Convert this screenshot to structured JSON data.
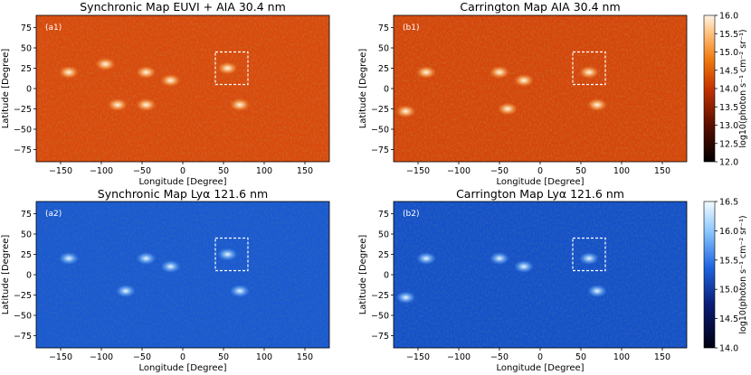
{
  "figure": {
    "panels": [
      {
        "id": "a1",
        "label": "(a1)",
        "title": "Synchronic Map EUVI + AIA 30.4 nm",
        "cmap": "orange",
        "xlabel": "Longitude [Degree]",
        "ylabel": "Latitude [Degree]"
      },
      {
        "id": "b1",
        "label": "(b1)",
        "title": "Carrington Map AIA 30.4 nm",
        "cmap": "orange",
        "xlabel": "Longitude [Degree]",
        "ylabel": "Latitude [Degree]"
      },
      {
        "id": "a2",
        "label": "(a2)",
        "title": "Synchronic Map Lyα 121.6 nm",
        "cmap": "blue",
        "xlabel": "Longitude [Degree]",
        "ylabel": "Latitude [Degree]"
      },
      {
        "id": "b2",
        "label": "(b2)",
        "title": "Carrington Map Lyα 121.6 nm",
        "cmap": "blue",
        "xlabel": "Longitude [Degree]",
        "ylabel": "Latitude [Degree]"
      }
    ],
    "colorbars": [
      {
        "id": "cb-top",
        "label": "log10(photon s⁻¹ cm⁻² sr⁻¹)",
        "ticks": [
          "16.0",
          "15.5",
          "15.0",
          "14.5",
          "14.0",
          "13.5",
          "13.0",
          "12.5",
          "12.0"
        ],
        "range": [
          12.0,
          16.0
        ]
      },
      {
        "id": "cb-bottom",
        "label": "log10(photon s⁻¹ cm⁻² sr⁻¹)",
        "ticks": [
          "16.5",
          "16.0",
          "15.5",
          "15.0",
          "14.5",
          "14.0"
        ],
        "range": [
          14.0,
          16.5
        ]
      }
    ]
  },
  "chart_data": [
    {
      "type": "heatmap",
      "title": "Synchronic Map EUVI + AIA 30.4 nm",
      "xlabel": "Longitude [Degree]",
      "ylabel": "Latitude [Degree]",
      "xlim": [
        -180,
        180
      ],
      "ylim": [
        -90,
        90
      ],
      "xticks": [
        -150,
        -100,
        -50,
        0,
        50,
        100,
        150
      ],
      "yticks": [
        -75,
        -50,
        -25,
        0,
        25,
        50,
        75
      ],
      "highlight_box": {
        "lon": [
          40,
          80
        ],
        "lat": [
          5,
          45
        ]
      },
      "bright_regions": [
        {
          "lon": -140,
          "lat": 20
        },
        {
          "lon": -95,
          "lat": 30
        },
        {
          "lon": -45,
          "lat": 20
        },
        {
          "lon": -15,
          "lat": 10
        },
        {
          "lon": 55,
          "lat": 25
        },
        {
          "lon": -80,
          "lat": -20
        },
        {
          "lon": -45,
          "lat": -20
        },
        {
          "lon": 70,
          "lat": -20
        }
      ]
    },
    {
      "type": "heatmap",
      "title": "Carrington Map AIA 30.4 nm",
      "xlabel": "Longitude [Degree]",
      "ylabel": "Latitude [Degree]",
      "xlim": [
        -180,
        180
      ],
      "ylim": [
        -90,
        90
      ],
      "xticks": [
        -150,
        -100,
        -50,
        0,
        50,
        100,
        150
      ],
      "yticks": [
        -75,
        -50,
        -25,
        0,
        25,
        50,
        75
      ],
      "highlight_box": {
        "lon": [
          40,
          80
        ],
        "lat": [
          5,
          45
        ]
      },
      "bright_regions": [
        {
          "lon": -140,
          "lat": 20
        },
        {
          "lon": -50,
          "lat": 20
        },
        {
          "lon": -20,
          "lat": 10
        },
        {
          "lon": 60,
          "lat": 20
        },
        {
          "lon": -165,
          "lat": -28
        },
        {
          "lon": -40,
          "lat": -25
        },
        {
          "lon": 70,
          "lat": -20
        }
      ]
    },
    {
      "type": "heatmap",
      "title": "Synchronic Map Lyα 121.6 nm",
      "xlabel": "Longitude [Degree]",
      "ylabel": "Latitude [Degree]",
      "xlim": [
        -180,
        180
      ],
      "ylim": [
        -90,
        90
      ],
      "xticks": [
        -150,
        -100,
        -50,
        0,
        50,
        100,
        150
      ],
      "yticks": [
        -75,
        -50,
        -25,
        0,
        25,
        50,
        75
      ],
      "highlight_box": {
        "lon": [
          40,
          80
        ],
        "lat": [
          5,
          45
        ]
      },
      "bright_regions": [
        {
          "lon": -140,
          "lat": 20
        },
        {
          "lon": -45,
          "lat": 20
        },
        {
          "lon": -15,
          "lat": 10
        },
        {
          "lon": 55,
          "lat": 25
        },
        {
          "lon": -70,
          "lat": -20
        },
        {
          "lon": 70,
          "lat": -20
        }
      ]
    },
    {
      "type": "heatmap",
      "title": "Carrington Map Lyα 121.6 nm",
      "xlabel": "Longitude [Degree]",
      "ylabel": "Latitude [Degree]",
      "xlim": [
        -180,
        180
      ],
      "ylim": [
        -90,
        90
      ],
      "xticks": [
        -150,
        -100,
        -50,
        0,
        50,
        100,
        150
      ],
      "yticks": [
        -75,
        -50,
        -25,
        0,
        25,
        50,
        75
      ],
      "highlight_box": {
        "lon": [
          40,
          80
        ],
        "lat": [
          5,
          45
        ]
      },
      "bright_regions": [
        {
          "lon": -140,
          "lat": 20
        },
        {
          "lon": -50,
          "lat": 20
        },
        {
          "lon": -20,
          "lat": 10
        },
        {
          "lon": 60,
          "lat": 20
        },
        {
          "lon": -165,
          "lat": -28
        },
        {
          "lon": 70,
          "lat": -20
        }
      ]
    }
  ],
  "colors": {
    "orange_low": "#4a0a00",
    "orange_mid": "#e04a00",
    "orange_high": "#ffe6c8",
    "blue_low": "#000028",
    "blue_mid": "#1450c8",
    "blue_high": "#e6f4ff",
    "box": "#ffffff"
  }
}
